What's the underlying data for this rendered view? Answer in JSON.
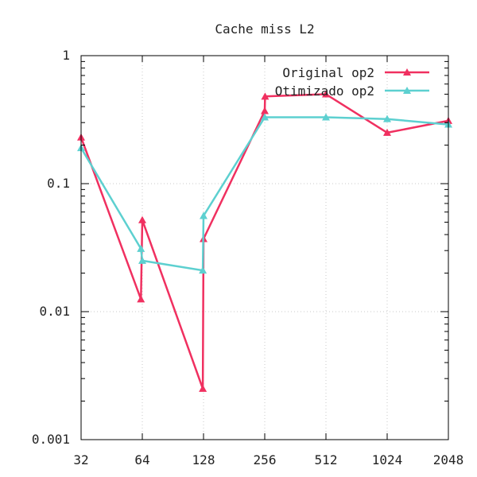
{
  "chart_data": {
    "type": "line",
    "title": "Cache miss L2",
    "xlabel": "",
    "ylabel": "",
    "x_scale": "log2",
    "y_scale": "log10",
    "xlim": [
      32,
      2048
    ],
    "ylim": [
      0.001,
      1
    ],
    "x_ticks": [
      32,
      64,
      128,
      256,
      512,
      1024,
      2048
    ],
    "x_tick_labels": [
      "32",
      "64",
      "128",
      "256",
      "512",
      "1024",
      "2048"
    ],
    "y_ticks": [
      0.001,
      0.01,
      0.1,
      1
    ],
    "y_tick_labels": [
      "0.001",
      "0.01",
      "0.1",
      "1"
    ],
    "grid": true,
    "legend_position": "top-right",
    "series": [
      {
        "name": "Original op2",
        "color": "#f03060",
        "marker": "triangle",
        "points": [
          {
            "x": 32,
            "y": 0.23
          },
          {
            "x": 63,
            "y": 0.0125
          },
          {
            "x": 64,
            "y": 0.052
          },
          {
            "x": 127,
            "y": 0.0025
          },
          {
            "x": 128,
            "y": 0.037
          },
          {
            "x": 256,
            "y": 0.37
          },
          {
            "x": 257,
            "y": 0.48
          },
          {
            "x": 512,
            "y": 0.5
          },
          {
            "x": 1024,
            "y": 0.25
          },
          {
            "x": 2048,
            "y": 0.31
          }
        ]
      },
      {
        "name": "Otimizado op2",
        "color": "#5dd0d0",
        "marker": "triangle",
        "points": [
          {
            "x": 32,
            "y": 0.19
          },
          {
            "x": 63,
            "y": 0.031
          },
          {
            "x": 64,
            "y": 0.025
          },
          {
            "x": 127,
            "y": 0.021
          },
          {
            "x": 128,
            "y": 0.056
          },
          {
            "x": 256,
            "y": 0.33
          },
          {
            "x": 512,
            "y": 0.33
          },
          {
            "x": 1024,
            "y": 0.32
          },
          {
            "x": 2048,
            "y": 0.29
          }
        ]
      }
    ]
  }
}
